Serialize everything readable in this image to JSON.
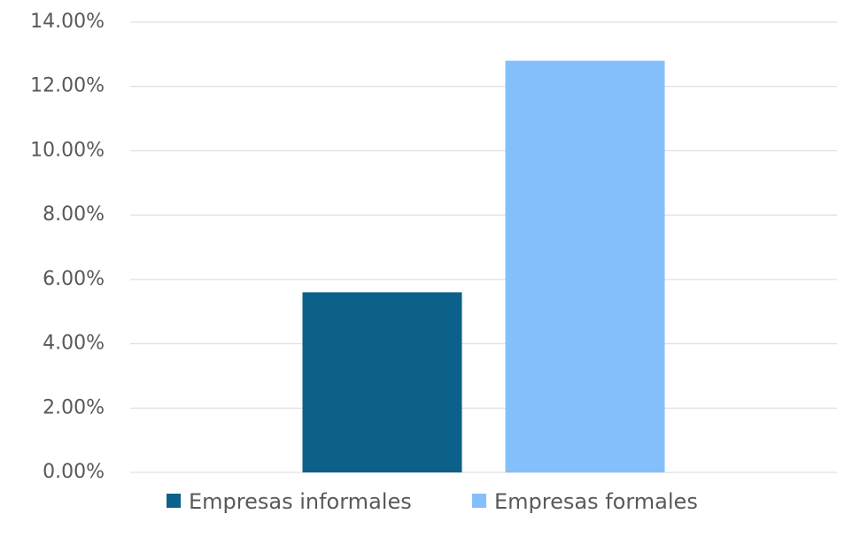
{
  "chart_data": {
    "type": "bar",
    "categories": [
      null
    ],
    "series": [
      {
        "name": "Empresas informales",
        "color": "#0b6189",
        "values": [
          5.6
        ]
      },
      {
        "name": "Empresas formales",
        "color": "#85bffb",
        "values": [
          12.8
        ]
      }
    ],
    "ylim": [
      0,
      14
    ],
    "yticks": [
      {
        "value": 0,
        "label": "0.00%"
      },
      {
        "value": 2,
        "label": "2.00%"
      },
      {
        "value": 4,
        "label": "4.00%"
      },
      {
        "value": 6,
        "label": "6.00%"
      },
      {
        "value": 8,
        "label": "8.00%"
      },
      {
        "value": 10,
        "label": "10.00%"
      },
      {
        "value": 12,
        "label": "12.00%"
      },
      {
        "value": 14,
        "label": "14.00%"
      }
    ],
    "grid": true,
    "legend": "bottom"
  }
}
